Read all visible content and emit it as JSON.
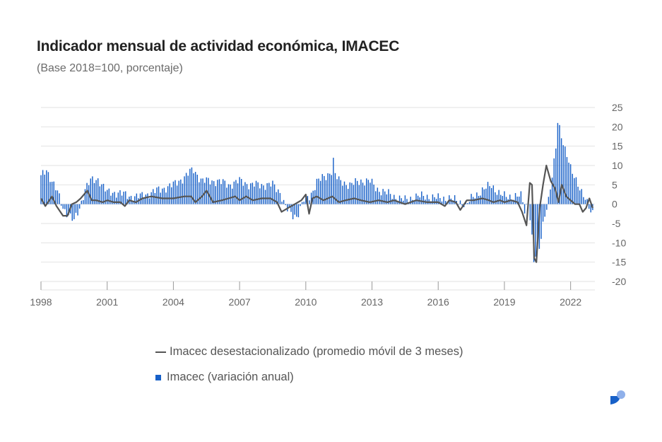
{
  "title": "Indicador mensual de actividad económica, IMACEC",
  "subtitle": "(Base 2018=100, porcentaje)",
  "colors": {
    "bars": "#1760c8",
    "line": "#555555",
    "grid": "#e2e2e2",
    "logo_main": "#1760c8",
    "logo_dot": "#8fb0ea"
  },
  "legend": {
    "line_label": "Imacec desestacionalizado (promedio móvil de 3 meses)",
    "bar_label": "Imacec (variación anual)"
  },
  "chart_data": {
    "type": "bar+line",
    "title": "Indicador mensual de actividad económica, IMACEC",
    "subtitle": "(Base 2018=100, porcentaje)",
    "ylim": [
      -20,
      25
    ],
    "yticks": [
      25,
      20,
      15,
      10,
      5,
      0,
      -5,
      -10,
      -15,
      -20
    ],
    "xlim": [
      1998,
      2023.1
    ],
    "xticks": [
      1998,
      2001,
      2004,
      2007,
      2010,
      2013,
      2016,
      2019,
      2022
    ],
    "grid": true,
    "legend_position": "bottom",
    "series": [
      {
        "name": "Imacec (variación anual)",
        "kind": "bar",
        "frequency": "monthly",
        "start": "1998-01",
        "keypoints": [
          [
            1998.0,
            7
          ],
          [
            1998.25,
            9
          ],
          [
            1998.5,
            6
          ],
          [
            1998.75,
            3
          ],
          [
            1999.0,
            -1
          ],
          [
            1999.3,
            -3
          ],
          [
            1999.5,
            -4.5
          ],
          [
            1999.75,
            -1
          ],
          [
            2000.0,
            4
          ],
          [
            2000.25,
            6
          ],
          [
            2000.6,
            6.5
          ],
          [
            2001.0,
            3
          ],
          [
            2001.5,
            3
          ],
          [
            2002.0,
            2
          ],
          [
            2002.5,
            2
          ],
          [
            2003.0,
            3
          ],
          [
            2003.5,
            4
          ],
          [
            2004.0,
            5
          ],
          [
            2004.5,
            7
          ],
          [
            2004.9,
            9
          ],
          [
            2005.3,
            6
          ],
          [
            2006.0,
            6
          ],
          [
            2006.5,
            5
          ],
          [
            2007.0,
            6
          ],
          [
            2007.5,
            5
          ],
          [
            2008.0,
            5
          ],
          [
            2008.5,
            5
          ],
          [
            2008.85,
            3
          ],
          [
            2009.1,
            -1
          ],
          [
            2009.4,
            -3
          ],
          [
            2009.6,
            -3
          ],
          [
            2009.9,
            1
          ],
          [
            2010.2,
            2
          ],
          [
            2010.5,
            6
          ],
          [
            2010.9,
            7
          ],
          [
            2011.2,
            9
          ],
          [
            2011.5,
            6
          ],
          [
            2012.0,
            5
          ],
          [
            2012.5,
            6
          ],
          [
            2012.9,
            6
          ],
          [
            2013.2,
            4
          ],
          [
            2013.6,
            3
          ],
          [
            2014.0,
            2
          ],
          [
            2014.5,
            1
          ],
          [
            2015.0,
            2
          ],
          [
            2015.5,
            2
          ],
          [
            2016.0,
            1.5
          ],
          [
            2016.5,
            1.5
          ],
          [
            2017.0,
            0.5
          ],
          [
            2017.3,
            0
          ],
          [
            2017.6,
            2
          ],
          [
            2018.0,
            3.5
          ],
          [
            2018.4,
            5
          ],
          [
            2018.8,
            2.5
          ],
          [
            2019.0,
            2
          ],
          [
            2019.5,
            2
          ],
          [
            2019.8,
            2
          ],
          [
            2019.9,
            -2
          ],
          [
            2020.1,
            1
          ],
          [
            2020.3,
            -12
          ],
          [
            2020.45,
            -14
          ],
          [
            2020.6,
            -11
          ],
          [
            2020.8,
            -3
          ],
          [
            2021.0,
            1
          ],
          [
            2021.2,
            8
          ],
          [
            2021.4,
            18
          ],
          [
            2021.5,
            20
          ],
          [
            2021.75,
            14
          ],
          [
            2022.0,
            9
          ],
          [
            2022.3,
            6
          ],
          [
            2022.5,
            3
          ],
          [
            2022.75,
            0
          ],
          [
            2022.9,
            -1.5
          ],
          [
            2023.0,
            -2
          ]
        ],
        "special": {
          "2011-04": 12,
          "2021-06": 21,
          "2020-05": -15
        }
      },
      {
        "name": "Imacec desestacionalizado (promedio móvil de 3 meses)",
        "kind": "line",
        "points": [
          [
            1998.0,
            1.5
          ],
          [
            1998.2,
            -0.5
          ],
          [
            1998.5,
            2
          ],
          [
            1998.7,
            -0.5
          ],
          [
            1999.0,
            -3
          ],
          [
            1999.2,
            -3
          ],
          [
            1999.4,
            0
          ],
          [
            1999.6,
            0.5
          ],
          [
            1999.8,
            1.5
          ],
          [
            2000.1,
            3.5
          ],
          [
            2000.3,
            1
          ],
          [
            2000.5,
            1
          ],
          [
            2000.8,
            0.5
          ],
          [
            2001.0,
            1
          ],
          [
            2001.3,
            0.5
          ],
          [
            2001.6,
            0.5
          ],
          [
            2001.8,
            -0.5
          ],
          [
            2002.0,
            1
          ],
          [
            2002.3,
            0.5
          ],
          [
            2002.6,
            1.5
          ],
          [
            2003.0,
            2
          ],
          [
            2003.5,
            1.5
          ],
          [
            2004.0,
            1.5
          ],
          [
            2004.5,
            2
          ],
          [
            2004.8,
            2
          ],
          [
            2005.0,
            0.5
          ],
          [
            2005.3,
            2
          ],
          [
            2005.5,
            3.5
          ],
          [
            2005.8,
            0.5
          ],
          [
            2006.2,
            1
          ],
          [
            2006.5,
            1.5
          ],
          [
            2006.8,
            2
          ],
          [
            2007.0,
            1
          ],
          [
            2007.3,
            2
          ],
          [
            2007.6,
            1
          ],
          [
            2008.0,
            1.5
          ],
          [
            2008.4,
            1.5
          ],
          [
            2008.7,
            0.5
          ],
          [
            2008.9,
            -2
          ],
          [
            2009.2,
            -1
          ],
          [
            2009.5,
            0
          ],
          [
            2009.8,
            1
          ],
          [
            2010.0,
            2.5
          ],
          [
            2010.15,
            -2.5
          ],
          [
            2010.3,
            1.5
          ],
          [
            2010.5,
            2
          ],
          [
            2010.8,
            1
          ],
          [
            2011.2,
            2
          ],
          [
            2011.5,
            0.5
          ],
          [
            2011.8,
            1
          ],
          [
            2012.2,
            1.5
          ],
          [
            2012.5,
            1
          ],
          [
            2012.9,
            0.5
          ],
          [
            2013.3,
            1
          ],
          [
            2013.7,
            0.5
          ],
          [
            2014.0,
            1
          ],
          [
            2014.5,
            0
          ],
          [
            2015.0,
            1
          ],
          [
            2015.5,
            0.5
          ],
          [
            2016.0,
            0.5
          ],
          [
            2016.3,
            -0.5
          ],
          [
            2016.5,
            1
          ],
          [
            2016.8,
            0.5
          ],
          [
            2017.0,
            -1.5
          ],
          [
            2017.3,
            1
          ],
          [
            2017.6,
            1
          ],
          [
            2018.0,
            1.5
          ],
          [
            2018.3,
            1
          ],
          [
            2018.5,
            0.5
          ],
          [
            2018.8,
            1
          ],
          [
            2019.0,
            0.5
          ],
          [
            2019.3,
            1
          ],
          [
            2019.6,
            0.5
          ],
          [
            2019.8,
            -2
          ],
          [
            2020.0,
            -5.5
          ],
          [
            2020.15,
            5.5
          ],
          [
            2020.25,
            5
          ],
          [
            2020.35,
            -14
          ],
          [
            2020.45,
            -15
          ],
          [
            2020.6,
            -1
          ],
          [
            2020.75,
            5
          ],
          [
            2020.9,
            10
          ],
          [
            2021.1,
            6
          ],
          [
            2021.3,
            4
          ],
          [
            2021.45,
            0.5
          ],
          [
            2021.6,
            5
          ],
          [
            2021.8,
            2
          ],
          [
            2022.0,
            1
          ],
          [
            2022.2,
            0
          ],
          [
            2022.4,
            0
          ],
          [
            2022.55,
            -2
          ],
          [
            2022.7,
            -1
          ],
          [
            2022.85,
            1.5
          ],
          [
            2023.0,
            -1
          ]
        ]
      }
    ]
  }
}
